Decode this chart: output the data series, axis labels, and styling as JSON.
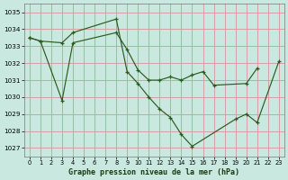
{
  "title": "Graphe pression niveau de la mer (hPa)",
  "background_color": "#c8e8e0",
  "grid_color": "#d4a0a0",
  "line_color": "#2d5a1e",
  "series1_x": [
    0,
    1,
    3,
    4,
    8,
    9,
    10,
    11,
    12,
    13,
    14,
    15,
    19,
    20,
    21,
    23
  ],
  "series1_y": [
    1033.5,
    1033.3,
    1033.2,
    1033.8,
    1034.6,
    1031.5,
    1030.8,
    1030.0,
    1029.3,
    1028.8,
    1027.8,
    1027.1,
    1028.7,
    1029.0,
    1028.5,
    1032.1
  ],
  "series2_x": [
    0,
    1,
    3,
    4,
    8,
    9,
    10,
    11,
    12,
    13,
    14,
    15,
    16,
    17,
    20,
    21
  ],
  "series2_y": [
    1033.5,
    1033.3,
    1029.8,
    1033.2,
    1033.8,
    1032.8,
    1031.6,
    1031.0,
    1031.0,
    1031.2,
    1031.0,
    1031.3,
    1031.5,
    1030.7,
    1030.8,
    1031.7
  ],
  "ylim": [
    1026.5,
    1035.5
  ],
  "yticks": [
    1027,
    1028,
    1029,
    1030,
    1031,
    1032,
    1033,
    1034,
    1035
  ],
  "xlim": [
    -0.5,
    23.5
  ],
  "xticks": [
    0,
    1,
    2,
    3,
    4,
    5,
    6,
    7,
    8,
    9,
    10,
    11,
    12,
    13,
    14,
    15,
    16,
    17,
    18,
    19,
    20,
    21,
    22,
    23
  ]
}
